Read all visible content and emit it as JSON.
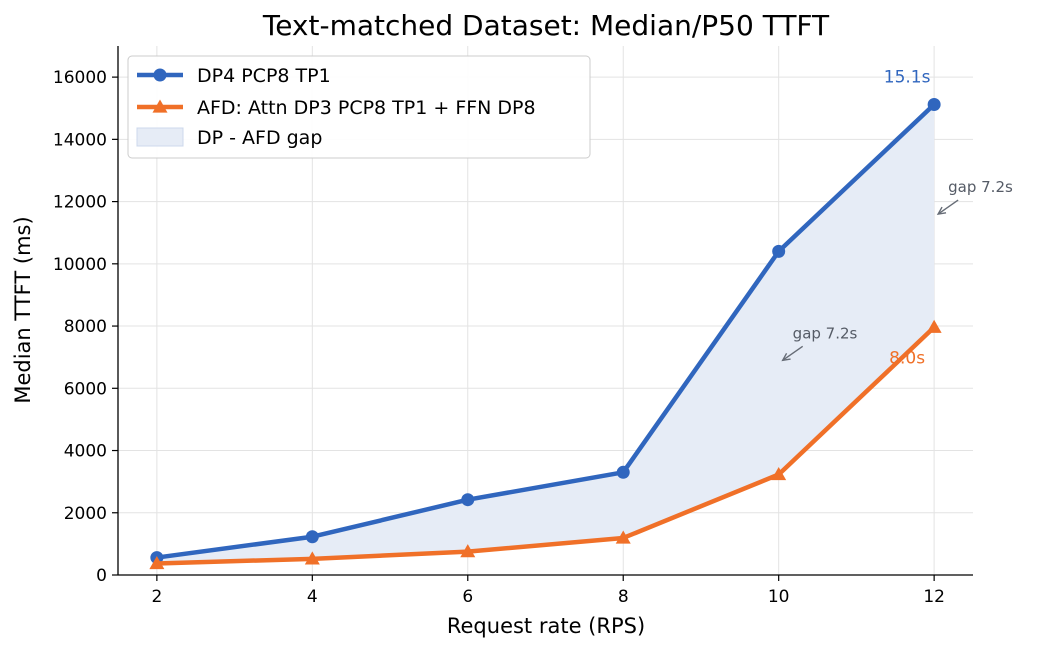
{
  "chart_data": {
    "type": "line",
    "title": "Text-matched Dataset: Median/P50 TTFT",
    "xlabel": "Request rate (RPS)",
    "ylabel": "Median TTFT (ms)",
    "x": [
      2,
      4,
      6,
      8,
      10,
      12
    ],
    "xticks": [
      2,
      4,
      6,
      8,
      10,
      12
    ],
    "yticks": [
      0,
      2000,
      4000,
      6000,
      8000,
      10000,
      12000,
      14000,
      16000
    ],
    "xlim": [
      1.5,
      12.5
    ],
    "ylim": [
      0,
      17000
    ],
    "grid": true,
    "legend_position": "top-left",
    "series": [
      {
        "name": "DP4 PCP8 TP1",
        "marker": "circle",
        "color": "#3066be",
        "values": [
          560,
          1230,
          2420,
          3300,
          10400,
          15120
        ]
      },
      {
        "name": "AFD: Attn DP3 PCP8 TP1 + FFN DP8",
        "marker": "triangle",
        "color": "#f07028",
        "values": [
          370,
          520,
          750,
          1190,
          3230,
          7960
        ]
      }
    ],
    "fill_between": {
      "label": "DP - AFD gap",
      "color": "#e6ecf6"
    },
    "end_labels": [
      {
        "text": "15.1s",
        "x": 12,
        "y": 15120,
        "color": "#3066be"
      },
      {
        "text": "8.0s",
        "x": 12,
        "y": 7960,
        "color": "#f07028"
      }
    ],
    "annotations": [
      {
        "text": "gap 7.2s",
        "point_x": 10,
        "point_y": 6900
      },
      {
        "text": "gap 7.2s",
        "point_x": 12,
        "point_y": 11600
      }
    ]
  }
}
